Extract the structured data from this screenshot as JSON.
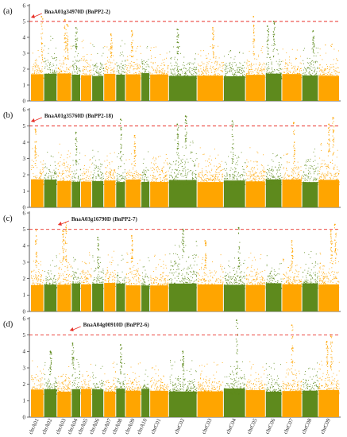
{
  "chart_data": {
    "type": "scatter",
    "chromosomes": [
      "chrA01",
      "chrA02",
      "chrA03",
      "chrA04",
      "chrA05",
      "chrA06",
      "chrA07",
      "chrA08",
      "chrA09",
      "chrA10",
      "chrC01",
      "chrC02",
      "chrC03",
      "chrC04",
      "chrC05",
      "chrC06",
      "chrC07",
      "chrC08",
      "chrC09"
    ],
    "chromosome_rel_length": [
      3.1,
      3.1,
      3.4,
      2.1,
      2.6,
      2.8,
      2.8,
      2.2,
      3.7,
      2.0,
      4.5,
      6.9,
      6.4,
      5.3,
      4.8,
      3.9,
      4.8,
      3.9,
      5.1
    ],
    "colors": {
      "odd": "#FFA500",
      "even": "#5E8A1D",
      "threshold": "#E8322A",
      "arrow": "#E8322A"
    },
    "threshold": 5,
    "ylim": [
      0,
      6
    ],
    "yticks": [
      0,
      1,
      2,
      3,
      4,
      5,
      6
    ],
    "xlabel": "",
    "ylabel": "",
    "grid": false,
    "panels": [
      {
        "label": "(a)",
        "annotation": "BnaA01g34970D (BnPP2-2)",
        "annotation_chr": 0,
        "baseline": [
          2.5,
          3.2,
          2.6,
          3.1,
          3.0,
          2.7,
          2.8,
          3.1,
          2.7,
          2.6,
          2.6,
          2.6,
          2.7,
          2.7,
          2.6,
          2.7,
          2.6,
          2.7,
          2.8
        ],
        "peaks": [
          {
            "chr": 0,
            "pos": 0.85,
            "y": 5.3
          },
          {
            "chr": 2,
            "pos": 0.55,
            "y": 5.1
          },
          {
            "chr": 2,
            "pos": 0.7,
            "y": 4.8
          },
          {
            "chr": 3,
            "pos": 0.5,
            "y": 4.6
          },
          {
            "chr": 6,
            "pos": 0.6,
            "y": 4.2
          },
          {
            "chr": 8,
            "pos": 0.4,
            "y": 4.4
          },
          {
            "chr": 11,
            "pos": 0.3,
            "y": 4.5
          },
          {
            "chr": 12,
            "pos": 0.6,
            "y": 4.6
          },
          {
            "chr": 14,
            "pos": 0.4,
            "y": 5.3
          },
          {
            "chr": 15,
            "pos": 0.5,
            "y": 5.0
          },
          {
            "chr": 15,
            "pos": 0.1,
            "y": 4.7
          },
          {
            "chr": 17,
            "pos": 0.7,
            "y": 4.4
          }
        ]
      },
      {
        "label": "(b)",
        "annotation": "BnaA01g35760D (BnPP2-18)",
        "annotation_chr": 0,
        "baseline": [
          2.8,
          2.6,
          3.1,
          2.5,
          2.4,
          2.9,
          2.8,
          2.6,
          2.5,
          2.6,
          2.8,
          3.3,
          2.8,
          2.7,
          2.8,
          2.8,
          2.7,
          2.8,
          3.1
        ],
        "peaks": [
          {
            "chr": 0,
            "pos": 0.35,
            "y": 4.8
          },
          {
            "chr": 3,
            "pos": 0.5,
            "y": 4.6
          },
          {
            "chr": 7,
            "pos": 0.5,
            "y": 5.4
          },
          {
            "chr": 8,
            "pos": 0.6,
            "y": 4.4
          },
          {
            "chr": 11,
            "pos": 0.6,
            "y": 5.6
          },
          {
            "chr": 11,
            "pos": 0.3,
            "y": 5.1
          },
          {
            "chr": 13,
            "pos": 0.4,
            "y": 5.3
          },
          {
            "chr": 16,
            "pos": 0.6,
            "y": 5.2
          },
          {
            "chr": 18,
            "pos": 0.7,
            "y": 5.5
          },
          {
            "chr": 18,
            "pos": 0.5,
            "y": 5.1
          }
        ]
      },
      {
        "label": "(c)",
        "annotation": "BnaA03g16790D (BnPP2-7)",
        "annotation_chr": 2,
        "baseline": [
          2.7,
          2.6,
          3.0,
          2.8,
          2.9,
          2.6,
          2.8,
          2.6,
          3.0,
          2.6,
          2.6,
          3.4,
          2.6,
          2.6,
          2.7,
          2.6,
          2.6,
          2.8,
          2.9
        ],
        "peaks": [
          {
            "chr": 0,
            "pos": 0.4,
            "y": 5.0
          },
          {
            "chr": 2,
            "pos": 0.6,
            "y": 5.4
          },
          {
            "chr": 2,
            "pos": 0.4,
            "y": 4.9
          },
          {
            "chr": 5,
            "pos": 0.5,
            "y": 4.5
          },
          {
            "chr": 8,
            "pos": 0.4,
            "y": 4.6
          },
          {
            "chr": 11,
            "pos": 0.5,
            "y": 5.0
          },
          {
            "chr": 12,
            "pos": 0.3,
            "y": 4.3
          },
          {
            "chr": 13,
            "pos": 0.7,
            "y": 5.1
          },
          {
            "chr": 16,
            "pos": 0.5,
            "y": 4.3
          },
          {
            "chr": 18,
            "pos": 0.6,
            "y": 4.9
          },
          {
            "chr": 18,
            "pos": 0.8,
            "y": 5.3
          }
        ]
      },
      {
        "label": "(d)",
        "annotation": "BnaA04g00910D (BnPP2-6)",
        "annotation_chr": 3,
        "baseline": [
          2.6,
          2.6,
          2.5,
          3.0,
          2.4,
          2.4,
          2.5,
          2.5,
          2.5,
          2.4,
          2.4,
          2.6,
          2.5,
          2.6,
          2.5,
          2.5,
          2.6,
          2.5,
          2.7
        ],
        "peaks": [
          {
            "chr": 3,
            "pos": 0.1,
            "y": 4.5
          },
          {
            "chr": 1,
            "pos": 0.5,
            "y": 4.0
          },
          {
            "chr": 7,
            "pos": 0.5,
            "y": 4.4
          },
          {
            "chr": 11,
            "pos": 0.5,
            "y": 4.0
          },
          {
            "chr": 13,
            "pos": 0.6,
            "y": 5.9
          },
          {
            "chr": 16,
            "pos": 0.5,
            "y": 5.6
          },
          {
            "chr": 18,
            "pos": 0.6,
            "y": 5.0
          },
          {
            "chr": 18,
            "pos": 0.4,
            "y": 4.6
          }
        ]
      }
    ]
  }
}
